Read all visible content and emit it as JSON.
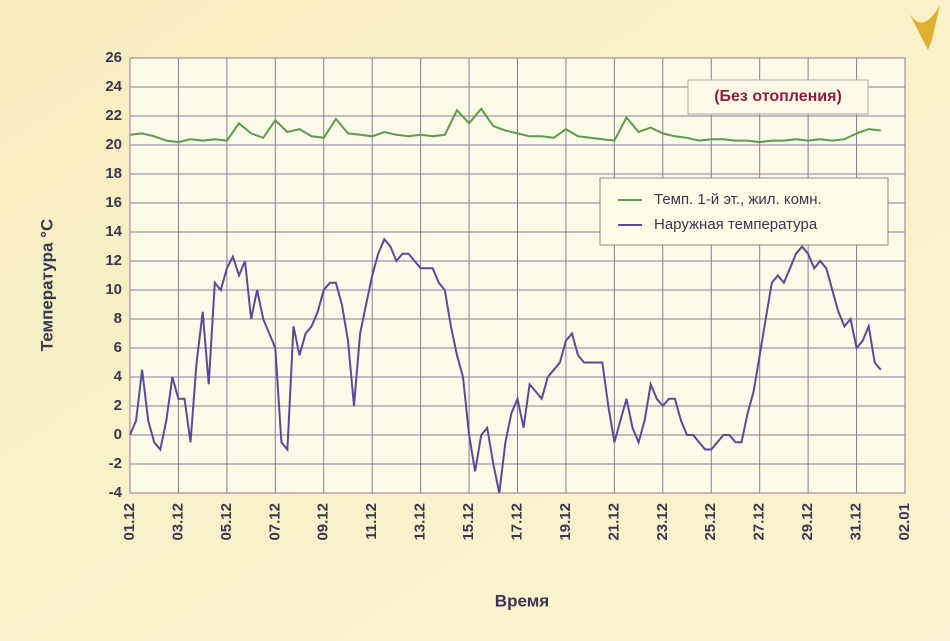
{
  "chart_data": {
    "type": "line",
    "ylabel": "Температура °C",
    "xlabel": "Время",
    "annotation": "(Без отопления)",
    "ylim": [
      -4,
      26
    ],
    "yticks": [
      -4,
      -2,
      0,
      2,
      4,
      6,
      8,
      10,
      12,
      14,
      16,
      18,
      20,
      22,
      24,
      26
    ],
    "xlim": [
      0,
      32
    ],
    "xticks": [
      {
        "value": 0,
        "label": "01.12"
      },
      {
        "value": 2,
        "label": "03.12"
      },
      {
        "value": 4,
        "label": "05.12"
      },
      {
        "value": 6,
        "label": "07.12"
      },
      {
        "value": 8,
        "label": "09.12"
      },
      {
        "value": 10,
        "label": "11.12"
      },
      {
        "value": 12,
        "label": "13.12"
      },
      {
        "value": 14,
        "label": "15.12"
      },
      {
        "value": 16,
        "label": "17.12"
      },
      {
        "value": 18,
        "label": "19.12"
      },
      {
        "value": 20,
        "label": "21.12"
      },
      {
        "value": 22,
        "label": "23.12"
      },
      {
        "value": 24,
        "label": "25.12"
      },
      {
        "value": 26,
        "label": "27.12"
      },
      {
        "value": 28,
        "label": "29.12"
      },
      {
        "value": 30,
        "label": "31.12"
      },
      {
        "value": 32,
        "label": "02.01"
      }
    ],
    "grid": true,
    "series": [
      {
        "name": "Темп. 1-й эт., жил. комн.",
        "color": "#5e9a4e",
        "x": [
          0,
          0.5,
          1,
          1.5,
          2,
          2.5,
          3,
          3.5,
          4,
          4.5,
          5,
          5.5,
          6,
          6.5,
          7,
          7.5,
          8,
          8.5,
          9,
          9.5,
          10,
          10.5,
          11,
          11.5,
          12,
          12.5,
          13,
          13.5,
          14,
          14.5,
          15,
          15.5,
          16,
          16.5,
          17,
          17.5,
          18,
          18.5,
          19,
          19.5,
          20,
          20.5,
          21,
          21.5,
          22,
          22.5,
          23,
          23.5,
          24,
          24.5,
          25,
          25.5,
          26,
          26.5,
          27,
          27.5,
          28,
          28.5,
          29,
          29.5,
          30,
          30.5,
          31
        ],
        "values": [
          20.7,
          20.8,
          20.6,
          20.3,
          20.2,
          20.4,
          20.3,
          20.4,
          20.3,
          21.5,
          20.8,
          20.5,
          21.7,
          20.9,
          21.1,
          20.6,
          20.5,
          21.8,
          20.8,
          20.7,
          20.6,
          20.9,
          20.7,
          20.6,
          20.7,
          20.6,
          20.7,
          22.4,
          21.5,
          22.5,
          21.3,
          21,
          20.8,
          20.6,
          20.6,
          20.5,
          21.1,
          20.6,
          20.5,
          20.4,
          20.3,
          21.9,
          20.9,
          21.2,
          20.8,
          20.6,
          20.5,
          20.3,
          20.4,
          20.4,
          20.3,
          20.3,
          20.2,
          20.3,
          20.3,
          20.4,
          20.3,
          20.4,
          20.3,
          20.4,
          20.8,
          21.1,
          21
        ]
      },
      {
        "name": "Наружная температура",
        "color": "#5a4a9a",
        "x": [
          0,
          0.25,
          0.5,
          0.75,
          1,
          1.25,
          1.5,
          1.75,
          2,
          2.25,
          2.5,
          2.75,
          3,
          3.25,
          3.5,
          3.75,
          4,
          4.25,
          4.5,
          4.75,
          5,
          5.25,
          5.5,
          5.75,
          6,
          6.25,
          6.5,
          6.75,
          7,
          7.25,
          7.5,
          7.75,
          8,
          8.25,
          8.5,
          8.75,
          9,
          9.25,
          9.5,
          9.75,
          10,
          10.25,
          10.5,
          10.75,
          11,
          11.25,
          11.5,
          11.75,
          12,
          12.25,
          12.5,
          12.75,
          13,
          13.25,
          13.5,
          13.75,
          14,
          14.25,
          14.5,
          14.75,
          15,
          15.25,
          15.5,
          15.75,
          16,
          16.25,
          16.5,
          16.75,
          17,
          17.25,
          17.5,
          17.75,
          18,
          18.25,
          18.5,
          18.75,
          19,
          19.25,
          19.5,
          19.75,
          20,
          20.25,
          20.5,
          20.75,
          21,
          21.25,
          21.5,
          21.75,
          22,
          22.25,
          22.5,
          22.75,
          23,
          23.25,
          23.5,
          23.75,
          24,
          24.25,
          24.5,
          24.75,
          25,
          25.25,
          25.5,
          25.75,
          26,
          26.25,
          26.5,
          26.75,
          27,
          27.25,
          27.5,
          27.75,
          28,
          28.25,
          28.5,
          28.75,
          29,
          29.25,
          29.5,
          29.75,
          30,
          30.25,
          30.5,
          30.75,
          31
        ],
        "values": [
          0,
          1,
          4.5,
          1,
          -0.5,
          -1,
          1,
          4,
          2.5,
          2.5,
          -0.5,
          5,
          8.5,
          3.5,
          10.5,
          10,
          11.5,
          12.3,
          11,
          12,
          8,
          10,
          8,
          7,
          6,
          -0.5,
          -1,
          7.5,
          5.5,
          7,
          7.5,
          8.5,
          10,
          10.5,
          10.5,
          9,
          6.5,
          2,
          7,
          9,
          11,
          12.5,
          13.5,
          13,
          12,
          12.5,
          12.5,
          12,
          11.5,
          11.5,
          11.5,
          10.5,
          10,
          7.5,
          5.5,
          4,
          0,
          -2.5,
          0,
          0.5,
          -2,
          -4,
          -0.5,
          1.5,
          2.5,
          0.5,
          3.5,
          3,
          2.5,
          4,
          4.5,
          5,
          6.5,
          7,
          5.5,
          5,
          5,
          5,
          5,
          2,
          -0.5,
          1,
          2.5,
          0.5,
          -0.5,
          1,
          3.5,
          2.5,
          2,
          2.5,
          2.5,
          1,
          0,
          0,
          -0.5,
          -1,
          -1,
          -0.5,
          0,
          0,
          -0.5,
          -0.5,
          1.5,
          3,
          5.5,
          8,
          10.5,
          11,
          10.5,
          11.5,
          12.5,
          13,
          12.5,
          11.5,
          12,
          11.5,
          10,
          8.5,
          7.5,
          8,
          6,
          6.5,
          7.5,
          5,
          4.5
        ]
      }
    ]
  }
}
